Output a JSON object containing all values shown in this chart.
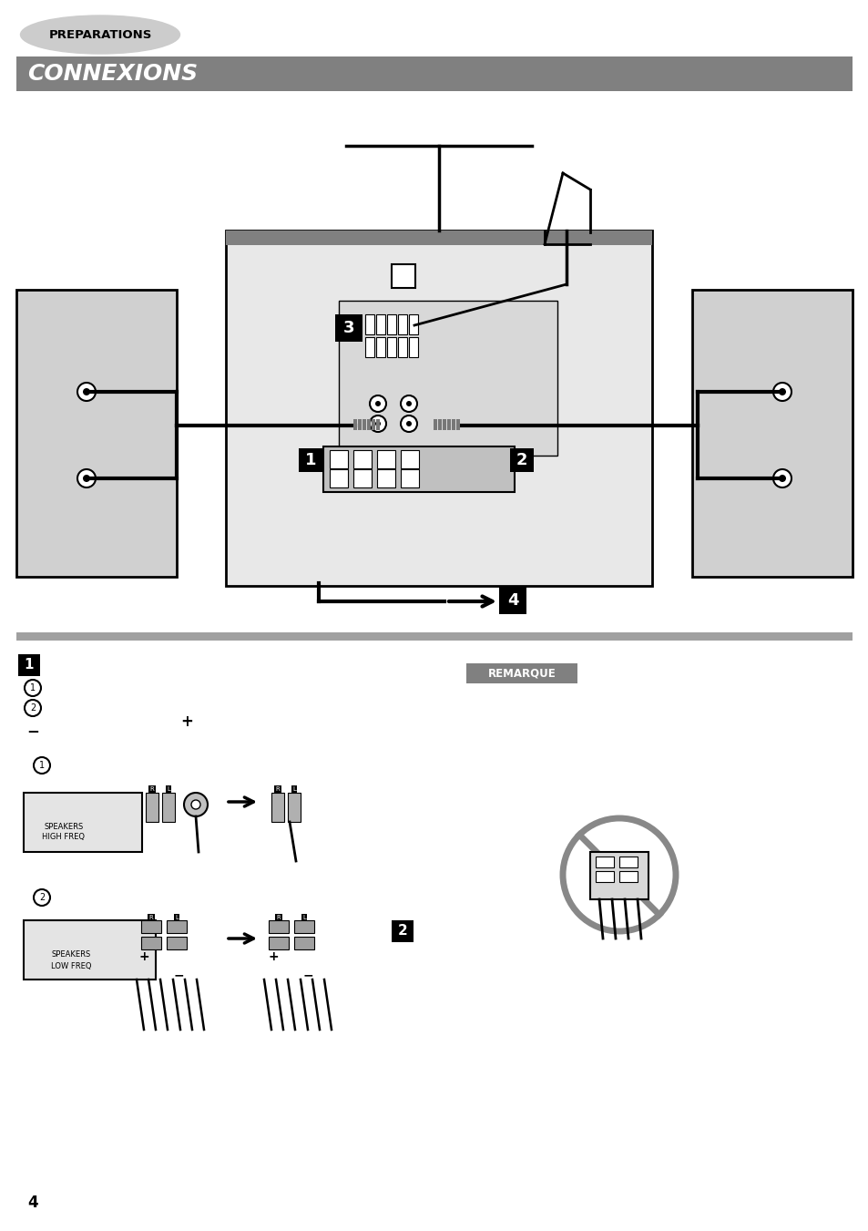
{
  "page_bg": "#ffffff",
  "title_bg": "#808080",
  "title_text": "CONNEXIONS",
  "title_text_color": "#ffffff",
  "header_text": "PREPARATIONS",
  "header_bg": "#cccccc",
  "page_number": "4",
  "section1_label": "1",
  "section2_label": "2",
  "remarque_label": "REMARQUE",
  "gray_light": "#d0d0d0",
  "gray_mid": "#a0a0a0",
  "gray_dark": "#808080",
  "black": "#000000",
  "white": "#ffffff"
}
